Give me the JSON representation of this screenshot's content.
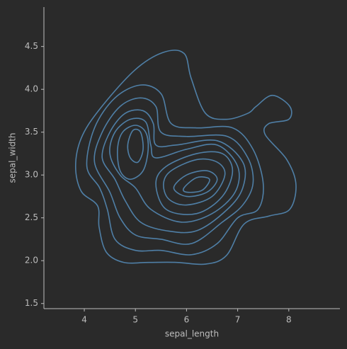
{
  "chart_data": {
    "type": "kde",
    "x_label": "sepal_length",
    "y_label": "sepal_width",
    "color": "#4f7fa6",
    "xlim": [
      3.21,
      9.0
    ],
    "ylim": [
      1.44,
      4.96
    ],
    "xticks": [
      4,
      5,
      6,
      7,
      8
    ],
    "yticks": [
      {
        "value": 1.5,
        "label": "1.5"
      },
      {
        "value": 2.0,
        "label": "2.0"
      },
      {
        "value": 2.5,
        "label": "2.5"
      },
      {
        "value": 3.0,
        "label": "3.0"
      },
      {
        "value": 3.5,
        "label": "3.5"
      },
      {
        "value": 4.0,
        "label": "4.0"
      },
      {
        "value": 4.5,
        "label": "4.5"
      }
    ],
    "grid": false,
    "contours": [
      {
        "x": [
          3.83,
          3.94,
          4.29,
          4.98,
          5.54,
          5.95,
          6.09,
          6.37,
          6.78,
          7.2,
          7.36,
          7.68,
          8.02,
          8.0,
          7.61,
          7.54,
          7.96,
          8.14,
          8.02,
          7.61,
          7.13,
          6.78,
          6.37,
          5.81,
          5.26,
          4.77,
          4.43,
          4.29,
          4.26,
          3.94
        ],
        "y": [
          3.1,
          3.43,
          3.76,
          4.22,
          4.43,
          4.42,
          4.13,
          3.72,
          3.65,
          3.72,
          3.8,
          3.93,
          3.8,
          3.65,
          3.6,
          3.47,
          3.18,
          2.89,
          2.6,
          2.52,
          2.43,
          2.06,
          1.96,
          1.98,
          1.98,
          1.98,
          2.1,
          2.39,
          2.64,
          2.81
        ]
      },
      {
        "x": [
          4.05,
          4.2,
          4.6,
          5.1,
          5.5,
          5.7,
          6.2,
          6.9,
          7.3,
          7.5,
          7.4,
          7.0,
          6.6,
          6.1,
          5.5,
          5.0,
          4.6,
          4.45,
          4.3
        ],
        "y": [
          3.1,
          3.55,
          3.9,
          4.05,
          3.95,
          3.6,
          3.55,
          3.55,
          3.3,
          2.9,
          2.6,
          2.5,
          2.2,
          2.07,
          2.12,
          2.12,
          2.25,
          2.6,
          2.85
        ]
      },
      {
        "x": [
          4.2,
          4.35,
          4.7,
          5.1,
          5.4,
          5.5,
          6.0,
          6.8,
          7.2,
          7.3,
          7.1,
          6.7,
          6.1,
          5.5,
          5.0,
          4.7,
          4.5
        ],
        "y": [
          3.15,
          3.5,
          3.8,
          3.9,
          3.8,
          3.5,
          3.45,
          3.45,
          3.2,
          2.9,
          2.65,
          2.45,
          2.2,
          2.25,
          2.3,
          2.5,
          2.8
        ]
      },
      {
        "x": [
          4.35,
          4.5,
          4.8,
          5.15,
          5.35,
          5.4,
          5.8,
          6.6,
          7.1,
          7.1,
          6.8,
          6.2,
          5.6,
          5.1,
          4.8,
          4.6
        ],
        "y": [
          3.2,
          3.5,
          3.72,
          3.75,
          3.6,
          3.35,
          3.35,
          3.4,
          3.15,
          2.85,
          2.6,
          2.35,
          2.35,
          2.45,
          2.7,
          2.95
        ]
      },
      {
        "x": [
          4.5,
          4.6,
          4.9,
          5.2,
          5.3,
          5.4,
          6.0,
          6.6,
          7.0,
          6.95,
          6.5,
          5.9,
          5.3,
          5.0,
          4.7
        ],
        "y": [
          3.25,
          3.5,
          3.65,
          3.62,
          3.35,
          3.2,
          3.3,
          3.35,
          3.1,
          2.8,
          2.55,
          2.45,
          2.6,
          2.85,
          3.0
        ]
      },
      {
        "x": [
          4.65,
          4.75,
          5.0,
          5.2,
          5.25,
          5.15,
          4.9,
          4.7
        ],
        "y": [
          3.3,
          3.5,
          3.58,
          3.5,
          3.3,
          3.05,
          2.95,
          3.05
        ]
      },
      {
        "x": [
          5.4,
          5.6,
          6.2,
          6.7,
          6.9,
          6.7,
          6.2,
          5.6
        ],
        "y": [
          2.9,
          3.1,
          3.25,
          3.25,
          3.05,
          2.75,
          2.55,
          2.6
        ]
      },
      {
        "x": [
          4.85,
          4.95,
          5.1,
          5.15,
          5.05,
          4.9
        ],
        "y": [
          3.35,
          3.52,
          3.5,
          3.3,
          3.15,
          3.2
        ]
      },
      {
        "x": [
          5.55,
          5.7,
          6.2,
          6.6,
          6.75,
          6.5,
          6.0,
          5.65
        ],
        "y": [
          2.9,
          3.05,
          3.18,
          3.15,
          3.0,
          2.75,
          2.65,
          2.72
        ]
      },
      {
        "x": [
          5.75,
          6.0,
          6.4,
          6.6,
          6.4,
          6.0
        ],
        "y": [
          2.85,
          3.0,
          3.05,
          2.95,
          2.8,
          2.75
        ]
      },
      {
        "x": [
          5.95,
          6.2,
          6.45,
          6.3,
          6.0
        ],
        "y": [
          2.85,
          2.97,
          2.95,
          2.82,
          2.8
        ]
      }
    ]
  }
}
